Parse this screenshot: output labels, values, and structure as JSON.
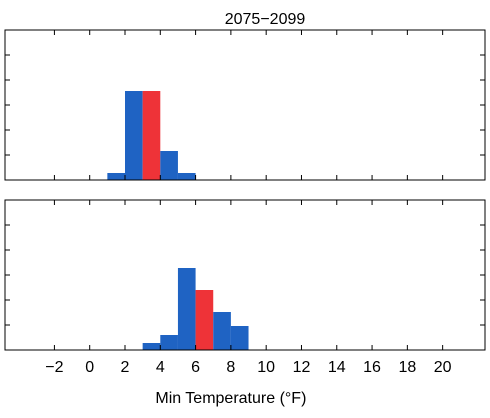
{
  "chart_data": [
    {
      "type": "histogram",
      "title": "2075−2099",
      "bins": [
        1,
        2,
        3,
        4,
        5,
        6
      ],
      "values": [
        0.28,
        3.56,
        3.56,
        1.16,
        0.28
      ],
      "colors": [
        "#1f63c3",
        "#1f63c3",
        "#ee3338",
        "#1f63c3",
        "#1f63c3"
      ],
      "xlim": [
        -4.8,
        22.4
      ],
      "xticks": [
        -2,
        0,
        2,
        4,
        6,
        8,
        10,
        12,
        14,
        16,
        18,
        20
      ],
      "ylim": [
        0,
        6
      ],
      "yticks": [
        1,
        2,
        3,
        4,
        5
      ]
    },
    {
      "type": "histogram",
      "xlabel": "Min Temperature (°F)",
      "bins": [
        3,
        4,
        5,
        6,
        7,
        8,
        9
      ],
      "values": [
        0.28,
        0.6,
        3.28,
        2.4,
        1.52,
        0.96
      ],
      "colors": [
        "#1f63c3",
        "#1f63c3",
        "#1f63c3",
        "#ee3338",
        "#1f63c3",
        "#1f63c3"
      ],
      "xlim": [
        -4.8,
        22.4
      ],
      "xticks": [
        {
          "value": -2,
          "label": "−2"
        },
        0,
        2,
        4,
        6,
        8,
        10,
        12,
        14,
        16,
        18,
        20
      ],
      "ylim": [
        0,
        6
      ],
      "yticks": [
        1,
        2,
        3,
        4,
        5
      ]
    }
  ]
}
